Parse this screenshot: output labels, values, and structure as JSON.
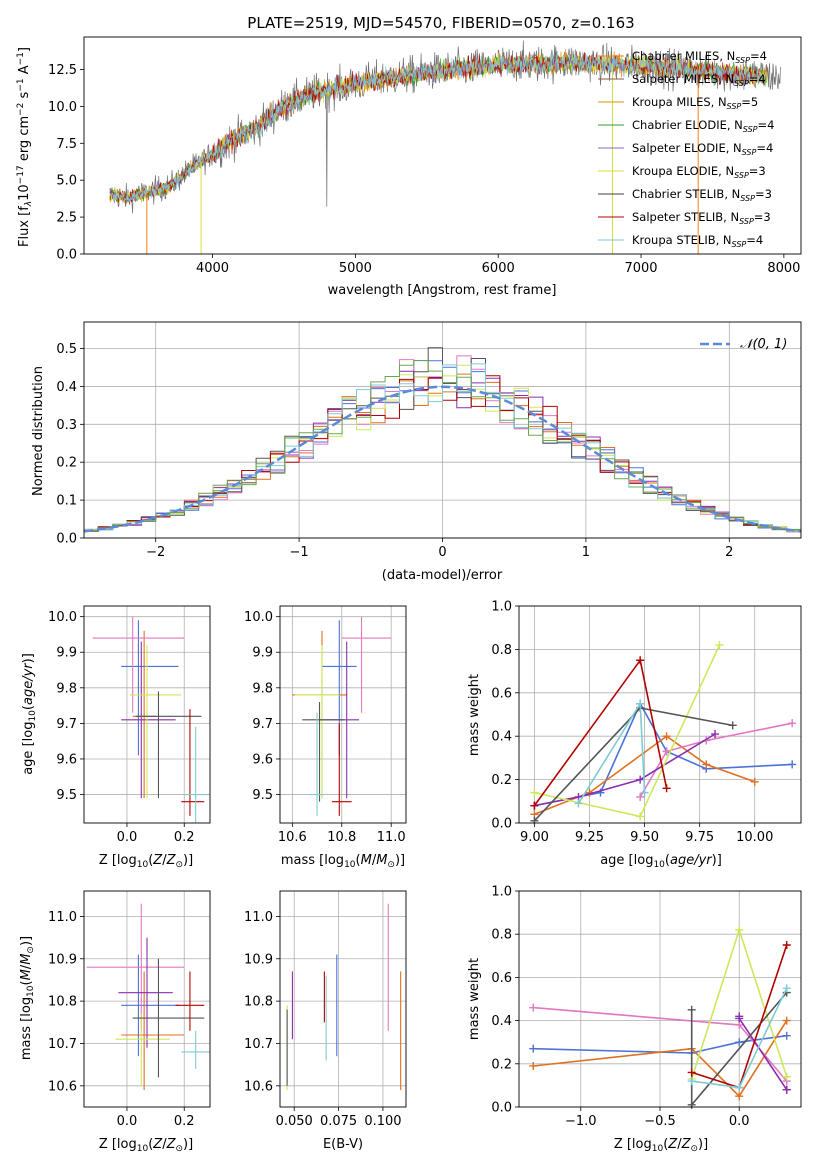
{
  "figure": {
    "title": "PLATE=2519, MJD=54570, FIBERID=0570, z=0.163"
  },
  "colors": {
    "series": [
      "#ff7f0e",
      "#8c564b",
      "#d69a00",
      "#2ca02c",
      "#9467bd",
      "#dbdb3a",
      "#404040",
      "#b30000",
      "#7ec8e3"
    ],
    "fits": [
      "#4c72d8",
      "#e07020",
      "#e377c2",
      "#8c2db0",
      "#cde85a",
      "#555555",
      "#b30000",
      "#7ecbd6"
    ]
  },
  "chart_data": [
    {
      "id": "spectrum",
      "type": "line",
      "title": "PLATE=2519, MJD=54570, FIBERID=0570, z=0.163",
      "xlabel": "wavelength [Angstrom, rest frame]",
      "ylabel": "Flux [f_λ 10^-17 erg cm^-2 s^-1 A^-1]",
      "xlim": [
        3100,
        8120
      ],
      "ylim": [
        0,
        14.7
      ],
      "xticks": [
        4000,
        5000,
        6000,
        7000,
        8000
      ],
      "yticks": [
        0.0,
        2.5,
        5.0,
        7.5,
        10.0,
        12.5
      ],
      "grid": false,
      "legend_position": "top-right",
      "spectrum_knots": {
        "x": [
          3280,
          3400,
          3550,
          3700,
          3850,
          4000,
          4150,
          4300,
          4500,
          4700,
          4900,
          5100,
          5300,
          5500,
          5700,
          5900,
          6100,
          6300,
          6500,
          6700,
          6900,
          7100,
          7300,
          7500,
          7700,
          7900
        ],
        "y": [
          4.0,
          3.8,
          4.2,
          4.6,
          5.8,
          6.8,
          7.8,
          8.5,
          10.0,
          10.9,
          11.3,
          11.7,
          12.0,
          12.3,
          12.5,
          12.7,
          12.9,
          12.9,
          13.0,
          12.9,
          12.8,
          12.7,
          12.5,
          12.3,
          12.2,
          12.0
        ]
      },
      "series": [
        {
          "name": "Chabrier MILES",
          "n_ssp": "4"
        },
        {
          "name": "Salpeter MILES",
          "n_ssp": "4"
        },
        {
          "name": "Kroupa MILES",
          "n_ssp": "5"
        },
        {
          "name": "Chabrier ELODIE",
          "n_ssp": "4"
        },
        {
          "name": "Salpeter ELODIE",
          "n_ssp": "4"
        },
        {
          "name": "Kroupa ELODIE",
          "n_ssp": "3"
        },
        {
          "name": "Chabrier STELIB",
          "n_ssp": "3"
        },
        {
          "name": "Salpeter STELIB",
          "n_ssp": "3"
        },
        {
          "name": "Kroupa STELIB",
          "n_ssp": "4"
        }
      ]
    },
    {
      "id": "residuals",
      "type": "area",
      "xlabel": "(data-model)/error",
      "ylabel": "Normed distribution",
      "xlim": [
        -2.5,
        2.5
      ],
      "ylim": [
        0,
        0.57
      ],
      "xticks": [
        -2,
        -1,
        0,
        1,
        2
      ],
      "yticks": [
        0.0,
        0.1,
        0.2,
        0.3,
        0.4,
        0.5
      ],
      "grid": true,
      "legend_position": "top-right",
      "reference_curve": "𝒩(0, 1)",
      "bin_width": 0.1
    },
    {
      "id": "age-vs-Z",
      "type": "scatter",
      "xlabel": "Z [log10(Z/Z⊙)]",
      "ylabel": "age [log10(age/yr)]",
      "xlim": [
        -0.15,
        0.29
      ],
      "ylim": [
        9.42,
        10.03
      ],
      "xticks": [
        0.0,
        0.2
      ],
      "yticks": [
        9.5,
        9.6,
        9.7,
        9.8,
        9.9,
        10.0
      ],
      "grid": true,
      "points": [
        {
          "x": 0.04,
          "y": 9.86,
          "xerr": [
            0.06,
            0.14
          ],
          "yerr": [
            0.25,
            0.13
          ]
        },
        {
          "x": 0.06,
          "y": 9.72,
          "xerr": [
            0.04,
            0.04
          ],
          "yerr": [
            0.23,
            0.24
          ]
        },
        {
          "x": 0.02,
          "y": 9.94,
          "xerr": [
            0.14,
            0.18
          ],
          "yerr": [
            0.21,
            0.06
          ]
        },
        {
          "x": 0.05,
          "y": 9.71,
          "xerr": [
            0.07,
            0.12
          ],
          "yerr": [
            0.22,
            0.22
          ]
        },
        {
          "x": 0.07,
          "y": 9.78,
          "xerr": [
            0.06,
            0.12
          ],
          "yerr": [
            0.29,
            0.14
          ]
        },
        {
          "x": 0.11,
          "y": 9.72,
          "xerr": [
            0.08,
            0.15
          ],
          "yerr": [
            0.23,
            0.07
          ]
        },
        {
          "x": 0.22,
          "y": 9.48,
          "xerr": [
            0.03,
            0.05
          ],
          "yerr": [
            0.04,
            0.26
          ]
        },
        {
          "x": 0.24,
          "y": 9.5,
          "xerr": [
            0.04,
            0.04
          ],
          "yerr": [
            0.08,
            0.19
          ]
        }
      ]
    },
    {
      "id": "age-vs-mass",
      "type": "scatter",
      "xlabel": "mass [log10(M/M⊙)]",
      "ylabel": "",
      "xlim": [
        10.55,
        11.06
      ],
      "ylim": [
        9.42,
        10.03
      ],
      "xticks": [
        10.6,
        10.8,
        11.0
      ],
      "yticks": [
        9.5,
        9.6,
        9.7,
        9.8,
        9.9,
        10.0
      ],
      "grid": true,
      "points": [
        {
          "x": 10.79,
          "y": 9.86,
          "xerr": [
            0.07,
            0.07
          ],
          "yerr": [
            0.25,
            0.13
          ]
        },
        {
          "x": 10.72,
          "y": 9.78,
          "xerr": [
            0.12,
            0.1
          ],
          "yerr": [
            0.29,
            0.18
          ]
        },
        {
          "x": 10.88,
          "y": 9.94,
          "xerr": [
            0.08,
            0.12
          ],
          "yerr": [
            0.21,
            0.06
          ]
        },
        {
          "x": 10.82,
          "y": 9.71,
          "xerr": [
            0.11,
            0.05
          ],
          "yerr": [
            0.22,
            0.22
          ]
        },
        {
          "x": 10.72,
          "y": 9.78,
          "xerr": [
            0.11,
            0.07
          ],
          "yerr": [
            0.29,
            0.14
          ]
        },
        {
          "x": 10.71,
          "y": 9.71,
          "xerr": [
            0.07,
            0.1
          ],
          "yerr": [
            0.23,
            0.05
          ]
        },
        {
          "x": 10.79,
          "y": 9.48,
          "xerr": [
            0.03,
            0.05
          ],
          "yerr": [
            0.04,
            0.22
          ]
        },
        {
          "x": 10.7,
          "y": 9.5,
          "xerr": [
            0.03,
            0.03
          ],
          "yerr": [
            0.06,
            0.23
          ]
        }
      ]
    },
    {
      "id": "weight-vs-age",
      "type": "line",
      "xlabel": "age [log10(age/yr)]",
      "ylabel": "mass weight",
      "xlim": [
        8.93,
        10.21
      ],
      "ylim": [
        0,
        1.0
      ],
      "xticks": [
        9.0,
        9.25,
        9.5,
        9.75,
        10.0
      ],
      "yticks": [
        0.0,
        0.2,
        0.4,
        0.6,
        0.8,
        1.0
      ],
      "grid": true,
      "series": [
        {
          "x": [
            9.0,
            9.3,
            9.48,
            9.6,
            9.78,
            10.17
          ],
          "y": [
            0.08,
            0.14,
            0.55,
            0.33,
            0.25,
            0.27
          ]
        },
        {
          "x": [
            9.0,
            9.25,
            9.6,
            9.78,
            10.0
          ],
          "y": [
            0.04,
            0.14,
            0.4,
            0.27,
            0.19
          ]
        },
        {
          "x": [
            9.48,
            9.6,
            9.78,
            10.17
          ],
          "y": [
            0.12,
            0.33,
            0.38,
            0.46
          ]
        },
        {
          "x": [
            9.0,
            9.2,
            9.48,
            9.82
          ],
          "y": [
            0.08,
            0.12,
            0.2,
            0.41
          ]
        },
        {
          "x": [
            9.0,
            9.48,
            9.84
          ],
          "y": [
            0.14,
            0.03,
            0.82
          ]
        },
        {
          "x": [
            9.0,
            9.48,
            9.9
          ],
          "y": [
            0.01,
            0.53,
            0.45
          ]
        },
        {
          "x": [
            9.0,
            9.48,
            9.6
          ],
          "y": [
            0.08,
            0.75,
            0.16
          ]
        },
        {
          "x": [
            9.2,
            9.48,
            9.5
          ],
          "y": [
            0.09,
            0.55,
            0.14
          ]
        }
      ]
    },
    {
      "id": "mass-vs-Z",
      "type": "scatter",
      "xlabel": "Z [log10(Z/Z⊙)]",
      "ylabel": "mass [log10(M/M⊙)]",
      "xlim": [
        -0.15,
        0.29
      ],
      "ylim": [
        10.55,
        11.06
      ],
      "xticks": [
        0.0,
        0.2
      ],
      "yticks": [
        10.6,
        10.7,
        10.8,
        10.9,
        11.0
      ],
      "grid": true,
      "points": [
        {
          "x": 0.04,
          "y": 10.79,
          "xerr": [
            0.06,
            0.14
          ],
          "yerr": [
            0.12,
            0.12
          ]
        },
        {
          "x": 0.06,
          "y": 10.72,
          "xerr": [
            0.08,
            0.14
          ],
          "yerr": [
            0.13,
            0.15
          ]
        },
        {
          "x": 0.05,
          "y": 10.88,
          "xerr": [
            0.19,
            0.15
          ],
          "yerr": [
            0.15,
            0.15
          ]
        },
        {
          "x": 0.07,
          "y": 10.82,
          "xerr": [
            0.1,
            0.09
          ],
          "yerr": [
            0.13,
            0.13
          ]
        },
        {
          "x": 0.05,
          "y": 10.71,
          "xerr": [
            0.09,
            0.1
          ],
          "yerr": [
            0.11,
            0.06
          ]
        },
        {
          "x": 0.11,
          "y": 10.76,
          "xerr": [
            0.09,
            0.16
          ],
          "yerr": [
            0.14,
            0.14
          ]
        },
        {
          "x": 0.22,
          "y": 10.79,
          "xerr": [
            0.05,
            0.05
          ],
          "yerr": [
            0.06,
            0.08
          ]
        },
        {
          "x": 0.24,
          "y": 10.68,
          "xerr": [
            0.05,
            0.05
          ],
          "yerr": [
            0.04,
            0.05
          ]
        }
      ]
    },
    {
      "id": "mass-vs-EBV",
      "type": "scatter",
      "xlabel": "E(B-V)",
      "ylabel": "",
      "xlim": [
        0.042,
        0.113
      ],
      "ylim": [
        10.55,
        11.06
      ],
      "xticks": [
        0.05,
        0.075,
        0.1
      ],
      "yticks": [
        10.6,
        10.7,
        10.8,
        10.9,
        11.0
      ],
      "grid": true,
      "points": [
        {
          "x": 0.074,
          "y": 10.79,
          "yerr": [
            0.12,
            0.12
          ]
        },
        {
          "x": 0.11,
          "y": 10.72,
          "yerr": [
            0.13,
            0.15
          ]
        },
        {
          "x": 0.103,
          "y": 10.88,
          "yerr": [
            0.15,
            0.15
          ]
        },
        {
          "x": 0.049,
          "y": 10.79,
          "yerr": [
            0.08,
            0.08
          ]
        },
        {
          "x": 0.046,
          "y": 10.67,
          "yerr": [
            0.08,
            0.12
          ]
        },
        {
          "x": 0.046,
          "y": 10.72,
          "yerr": [
            0.12,
            0.06
          ]
        },
        {
          "x": 0.067,
          "y": 10.81,
          "yerr": [
            0.06,
            0.06
          ]
        },
        {
          "x": 0.068,
          "y": 10.75,
          "yerr": [
            0.09,
            0.11
          ]
        }
      ]
    },
    {
      "id": "weight-vs-Z",
      "type": "line",
      "xlabel": "Z [log10(Z/Z⊙)]",
      "ylabel": "mass weight",
      "xlim": [
        -1.39,
        0.39
      ],
      "ylim": [
        0,
        1.0
      ],
      "xticks": [
        -1.0,
        -0.5,
        0.0
      ],
      "yticks": [
        0.0,
        0.2,
        0.4,
        0.6,
        0.8,
        1.0
      ],
      "grid": true,
      "series": [
        {
          "x": [
            -1.3,
            -0.3,
            0.0,
            0.3
          ],
          "y": [
            0.27,
            0.25,
            0.3,
            0.33
          ]
        },
        {
          "x": [
            -1.3,
            -0.3,
            0.0,
            0.3
          ],
          "y": [
            0.19,
            0.27,
            0.05,
            0.4
          ]
        },
        {
          "x": [
            -1.3,
            0.0,
            0.3
          ],
          "y": [
            0.46,
            0.38,
            0.12
          ]
        },
        {
          "x": [
            0.0,
            0.0,
            0.3,
            0.3
          ],
          "y": [
            0.42,
            0.41,
            0.08,
            0.08
          ]
        },
        {
          "x": [
            -0.3,
            0.0,
            0.3
          ],
          "y": [
            0.13,
            0.82,
            0.14
          ]
        },
        {
          "x": [
            -0.3,
            -0.3,
            0.3
          ],
          "y": [
            0.45,
            0.01,
            0.53
          ]
        },
        {
          "x": [
            -0.3,
            0.0,
            0.3
          ],
          "y": [
            0.16,
            0.09,
            0.75
          ]
        },
        {
          "x": [
            -0.3,
            0.0,
            0.3
          ],
          "y": [
            0.12,
            0.09,
            0.55
          ]
        }
      ]
    }
  ]
}
